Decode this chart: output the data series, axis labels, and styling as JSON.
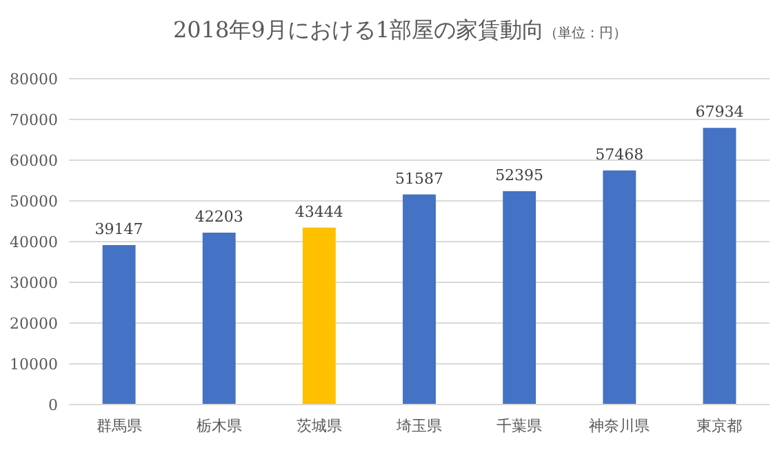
{
  "chart_data": {
    "type": "bar",
    "title": "2018年9月における1部屋の家賃動向",
    "subtitle": "（単位：円）",
    "categories": [
      "群馬県",
      "栃木県",
      "茨城県",
      "埼玉県",
      "千葉県",
      "神奈川県",
      "東京都"
    ],
    "values": [
      39147,
      42203,
      43444,
      51587,
      52395,
      57468,
      67934
    ],
    "colors": [
      "#4472c4",
      "#4472c4",
      "#ffc000",
      "#4472c4",
      "#4472c4",
      "#4472c4",
      "#4472c4"
    ],
    "ylim": [
      0,
      80000
    ],
    "yticks": [
      0,
      10000,
      20000,
      30000,
      40000,
      50000,
      60000,
      70000,
      80000
    ],
    "grid": "y",
    "data_labels": true
  }
}
